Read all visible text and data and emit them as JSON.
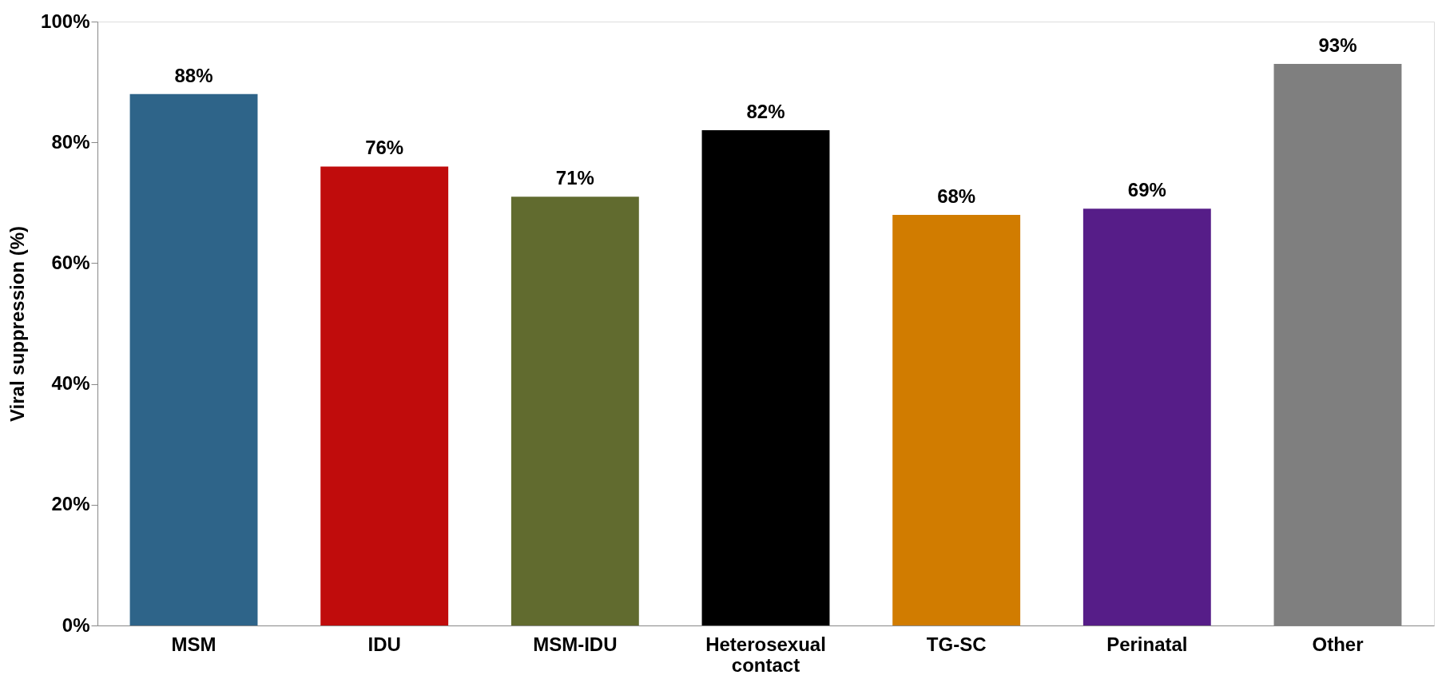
{
  "chart_data": {
    "type": "bar",
    "ylabel": "Viral suppression (%)",
    "categories": [
      "MSM",
      "IDU",
      "MSM-IDU",
      "Heterosexual contact",
      "TG-SC",
      "Perinatal",
      "Other"
    ],
    "values": [
      88,
      76,
      71,
      82,
      68,
      69,
      93
    ],
    "colors": [
      "#2e6489",
      "#c00c0c",
      "#616b2f",
      "#000000",
      "#d17c00",
      "#561d88",
      "#7f7f7f"
    ],
    "value_labels": [
      "88%",
      "76%",
      "71%",
      "82%",
      "68%",
      "69%",
      "93%"
    ],
    "ylim": [
      0,
      100
    ],
    "yticks": [
      {
        "value": 0,
        "label": "0%"
      },
      {
        "value": 20,
        "label": "20%"
      },
      {
        "value": 40,
        "label": "40%"
      },
      {
        "value": 60,
        "label": "60%"
      },
      {
        "value": 80,
        "label": "80%"
      },
      {
        "value": 100,
        "label": "100%"
      }
    ],
    "grid": false,
    "legend": false
  }
}
